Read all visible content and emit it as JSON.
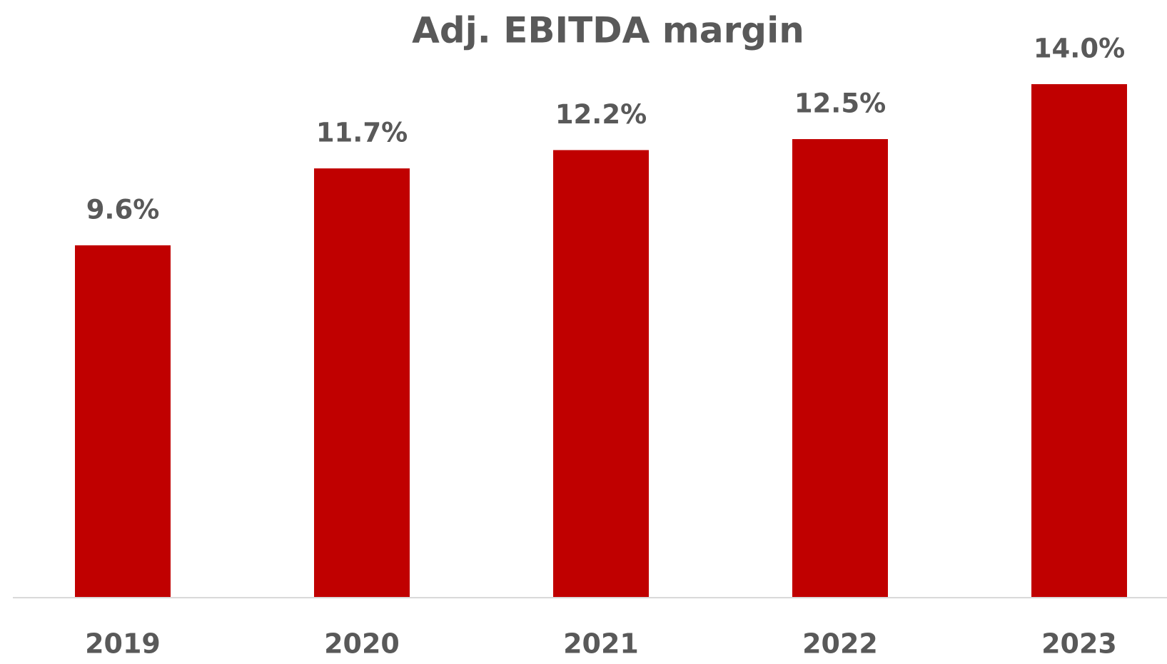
{
  "chart_data": {
    "type": "bar",
    "title": "Adj. EBITDA margin",
    "categories": [
      "2019",
      "2020",
      "2021",
      "2022",
      "2023"
    ],
    "values": [
      9.6,
      11.7,
      12.2,
      12.5,
      14.0
    ],
    "value_labels": [
      "9.6%",
      "11.7%",
      "12.2%",
      "12.5%",
      "14.0%"
    ],
    "color": "#c00000"
  }
}
